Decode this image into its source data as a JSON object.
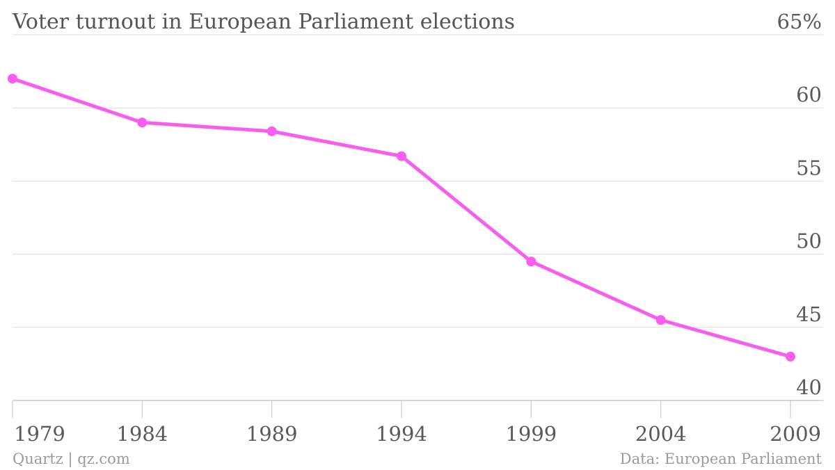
{
  "chart_data": {
    "type": "line",
    "title": "Voter turnout in European Parliament elections",
    "xlabel": "",
    "ylabel": "",
    "x": [
      1979,
      1984,
      1989,
      1994,
      1999,
      2004,
      2009
    ],
    "xtick_labels": [
      "1979",
      "1984",
      "1989",
      "1994",
      "1999",
      "2004",
      "2009"
    ],
    "series": [
      {
        "values": [
          62.0,
          59.0,
          58.4,
          56.7,
          49.5,
          45.5,
          43.0
        ]
      }
    ],
    "ylim": [
      40,
      65
    ],
    "yticks": [
      40,
      45,
      50,
      55,
      60,
      65
    ],
    "ytick_labels": [
      "40",
      "45",
      "50",
      "55",
      "60",
      "65%"
    ],
    "grid": true,
    "line_color": "#f75ef0",
    "gridline_color": "#dddddd"
  },
  "footer": {
    "source_left": "Quartz | qz.com",
    "source_right": "Data: European Parliament"
  }
}
